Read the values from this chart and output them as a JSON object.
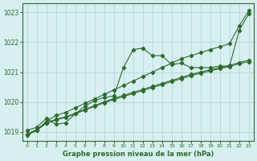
{
  "title": "Graphe pression niveau de la mer (hPa)",
  "background_color": "#d8eff0",
  "grid_color": "#b0d8da",
  "line_color": "#2d6a2d",
  "xlim": [
    -0.5,
    23.5
  ],
  "ylim": [
    1018.7,
    1023.3
  ],
  "yticks": [
    1019,
    1020,
    1021,
    1022,
    1023
  ],
  "xticks": [
    0,
    1,
    2,
    3,
    4,
    5,
    6,
    7,
    8,
    9,
    10,
    11,
    12,
    13,
    14,
    15,
    16,
    17,
    18,
    19,
    20,
    21,
    22,
    23
  ],
  "series": [
    {
      "name": "peak_line",
      "y": [
        1019.05,
        1019.15,
        1019.45,
        1019.25,
        1019.3,
        1019.6,
        1019.85,
        1020.05,
        1020.15,
        1020.2,
        1021.15,
        1021.75,
        1021.8,
        1021.55,
        1021.55,
        1021.25,
        1021.3,
        1021.15,
        1021.15,
        1021.15,
        1021.2,
        1021.2,
        1022.4,
        1022.95
      ],
      "marker": true
    },
    {
      "name": "straight_high",
      "y": [
        1018.88,
        1019.05,
        1019.35,
        1019.55,
        1019.65,
        1019.8,
        1019.95,
        1020.1,
        1020.25,
        1020.4,
        1020.55,
        1020.7,
        1020.85,
        1021.0,
        1021.15,
        1021.3,
        1021.45,
        1021.55,
        1021.65,
        1021.75,
        1021.85,
        1021.95,
        1022.55,
        1023.05
      ],
      "marker": true
    },
    {
      "name": "linear_low1",
      "y": [
        1018.92,
        1019.08,
        1019.3,
        1019.42,
        1019.5,
        1019.62,
        1019.75,
        1019.88,
        1020.0,
        1020.12,
        1020.22,
        1020.32,
        1020.42,
        1020.52,
        1020.62,
        1020.72,
        1020.82,
        1020.92,
        1021.0,
        1021.08,
        1021.15,
        1021.22,
        1021.32,
        1021.4
      ],
      "marker": true
    },
    {
      "name": "linear_low2",
      "y": [
        1018.9,
        1019.05,
        1019.28,
        1019.4,
        1019.48,
        1019.6,
        1019.73,
        1019.85,
        1019.97,
        1020.08,
        1020.18,
        1020.28,
        1020.38,
        1020.48,
        1020.58,
        1020.68,
        1020.78,
        1020.88,
        1020.96,
        1021.04,
        1021.12,
        1021.18,
        1021.28,
        1021.35
      ],
      "marker": true
    }
  ]
}
